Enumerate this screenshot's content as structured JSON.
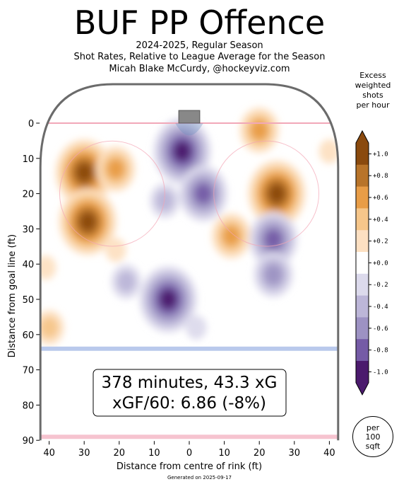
{
  "header": {
    "title": "BUF PP Offence",
    "subtitle_line1": "2024-2025, Regular Season",
    "subtitle_line2": "Shot Rates, Relative to League Average for the Season",
    "subtitle_line3": "Micah Blake McCurdy, @hockeyviz.com"
  },
  "colorbar": {
    "title": "Excess weighted shots per hour",
    "title_lines": [
      "Excess",
      "weighted",
      "shots",
      "per hour"
    ],
    "unit_lines": [
      "per",
      "100",
      "sqft"
    ],
    "levels": [
      {
        "label": "+1.0",
        "color": "#8a4a0e"
      },
      {
        "label": "+0.8",
        "color": "#b8742a"
      },
      {
        "label": "+0.6",
        "color": "#e89d47"
      },
      {
        "label": "+0.4",
        "color": "#f6c68a"
      },
      {
        "label": "+0.2",
        "color": "#fde0c2"
      },
      {
        "label": "+0.0",
        "color": "#ffffff"
      },
      {
        "label": "-0.2",
        "color": "#dcdaec"
      },
      {
        "label": "-0.4",
        "color": "#bcb6d8"
      },
      {
        "label": "-0.6",
        "color": "#9d92c3"
      },
      {
        "label": "-0.8",
        "color": "#755ba6"
      },
      {
        "label": "-1.0",
        "color": "#4b1a6d"
      }
    ]
  },
  "summary": {
    "line1": "378 minutes, 43.3 xG",
    "line2": "xGF/60: 6.86 (-8%)"
  },
  "footer": "Generated on 2025-09-17",
  "chart_data": {
    "type": "heatmap",
    "title": "BUF PP Offence",
    "xlabel": "Distance from centre of rink (ft)",
    "ylabel": "Distance from goal line (ft)",
    "xlim": [
      -42.5,
      42.5
    ],
    "ylim": [
      90,
      -11
    ],
    "x_ticks": [
      -40,
      -30,
      -20,
      -10,
      0,
      10,
      20,
      30,
      40
    ],
    "x_tick_labels": [
      "40",
      "30",
      "20",
      "10",
      "0",
      "10",
      "20",
      "30",
      "40"
    ],
    "y_ticks": [
      0,
      10,
      20,
      30,
      40,
      50,
      60,
      70,
      80,
      90
    ],
    "y_tick_labels": [
      "0",
      "10",
      "20",
      "30",
      "40",
      "50",
      "60",
      "70",
      "80",
      "90"
    ],
    "colorbar_range": [
      -1.0,
      1.0
    ],
    "hotspots": [
      {
        "x": -30,
        "y": 14,
        "value": 1.0
      },
      {
        "x": -29,
        "y": 28,
        "value": 1.0
      },
      {
        "x": -21,
        "y": 13,
        "value": 0.5
      },
      {
        "x": -21,
        "y": 36,
        "value": 0.3
      },
      {
        "x": -2,
        "y": 8,
        "value": -1.0
      },
      {
        "x": 4,
        "y": 20,
        "value": -0.8
      },
      {
        "x": -7,
        "y": 22,
        "value": -0.4
      },
      {
        "x": -6,
        "y": 50,
        "value": -1.0
      },
      {
        "x": -18,
        "y": 45,
        "value": -0.4
      },
      {
        "x": 2,
        "y": 58,
        "value": -0.3
      },
      {
        "x": 25,
        "y": 20,
        "value": 1.0
      },
      {
        "x": 12,
        "y": 32,
        "value": 0.7
      },
      {
        "x": 20,
        "y": 2,
        "value": 0.6
      },
      {
        "x": 24,
        "y": 33,
        "value": -0.8
      },
      {
        "x": 24,
        "y": 43,
        "value": -0.5
      },
      {
        "x": -40,
        "y": 58,
        "value": 0.4
      },
      {
        "x": -41,
        "y": 41,
        "value": 0.2
      },
      {
        "x": 40,
        "y": 8,
        "value": 0.2
      }
    ]
  }
}
